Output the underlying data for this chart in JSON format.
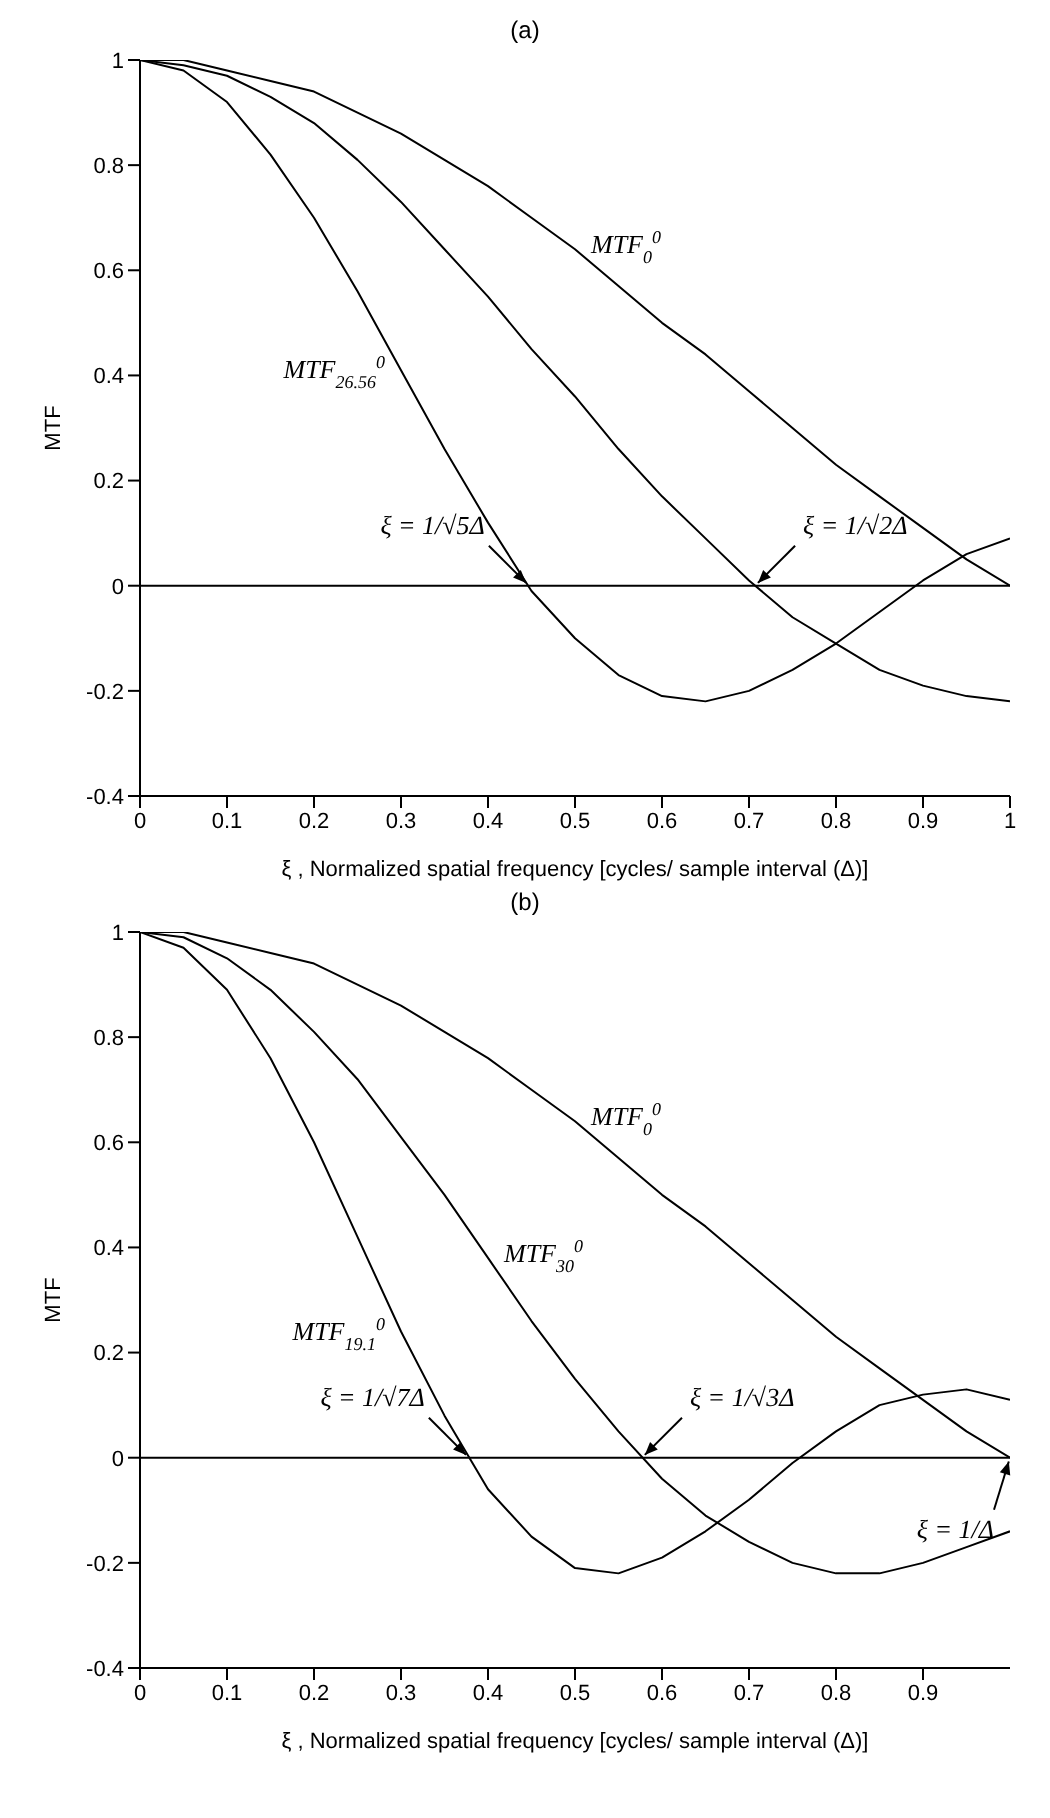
{
  "chart_data": [
    {
      "type": "line",
      "title": "(a)",
      "xlabel": "ξ , Normalized spatial frequency [cycles/ sample interval (Δ)]",
      "ylabel": "MTF",
      "x": [
        0,
        0.05,
        0.1,
        0.15,
        0.2,
        0.25,
        0.3,
        0.35,
        0.4,
        0.45,
        0.5,
        0.55,
        0.6,
        0.65,
        0.7,
        0.75,
        0.8,
        0.85,
        0.9,
        0.95,
        1
      ],
      "series": [
        {
          "color": "#000000",
          "values": [
            1,
            1.0,
            0.98,
            0.96,
            0.94,
            0.9,
            0.86,
            0.81,
            0.76,
            0.7,
            0.64,
            0.57,
            0.5,
            0.44,
            0.37,
            0.3,
            0.23,
            0.17,
            0.11,
            0.05,
            0
          ]
        },
        {
          "color": "#000000",
          "values": [
            1,
            0.99,
            0.97,
            0.93,
            0.88,
            0.81,
            0.73,
            0.64,
            0.55,
            0.45,
            0.36,
            0.26,
            0.17,
            0.09,
            0.01,
            -0.06,
            -0.11,
            -0.16,
            -0.19,
            -0.21,
            -0.22
          ]
        },
        {
          "color": "#000000",
          "values": [
            1,
            0.98,
            0.92,
            0.82,
            0.7,
            0.56,
            0.41,
            0.26,
            0.12,
            -0.01,
            -0.1,
            -0.17,
            -0.21,
            -0.22,
            -0.2,
            -0.16,
            -0.11,
            -0.05,
            0.01,
            0.06,
            0.09
          ]
        }
      ],
      "xlim": [
        0,
        1
      ],
      "xticks": [
        0,
        0.1,
        0.2,
        0.3,
        0.4,
        0.5,
        0.6,
        0.7,
        0.8,
        0.9,
        1
      ],
      "ylim": [
        -0.4,
        1
      ],
      "yticks": [
        -0.4,
        -0.2,
        0,
        0.2,
        0.4,
        0.6,
        0.8,
        1
      ],
      "ref_lines": [
        {
          "axis": "y",
          "value": 0,
          "color": "#000000"
        }
      ],
      "annotations": [
        {
          "text": "MTF$_{0}$$^{0}$",
          "x": 0.5,
          "y": 0.64
        },
        {
          "text": "MTF$_{26.56}$$^{0}$",
          "x": 0.3,
          "y": 0.41
        },
        {
          "text": "ξ = 1/√5Δ",
          "x": 0.447,
          "y": 0
        },
        {
          "text": "ξ = 1/√2Δ",
          "x": 0.707,
          "y": 0
        }
      ]
    },
    {
      "type": "line",
      "title": "(b)",
      "xlabel": "ξ , Normalized spatial frequency [cycles/ sample interval (Δ)]",
      "ylabel": "MTF",
      "x": [
        0,
        0.05,
        0.1,
        0.15,
        0.2,
        0.25,
        0.3,
        0.35,
        0.4,
        0.45,
        0.5,
        0.55,
        0.6,
        0.65,
        0.7,
        0.75,
        0.8,
        0.85,
        0.9,
        0.95,
        1
      ],
      "series": [
        {
          "color": "#000000",
          "values": [
            1,
            1.0,
            0.98,
            0.96,
            0.94,
            0.9,
            0.86,
            0.81,
            0.76,
            0.7,
            0.64,
            0.57,
            0.5,
            0.44,
            0.37,
            0.3,
            0.23,
            0.17,
            0.11,
            0.05,
            0
          ]
        },
        {
          "color": "#000000",
          "values": [
            1,
            0.99,
            0.95,
            0.89,
            0.81,
            0.72,
            0.61,
            0.5,
            0.38,
            0.26,
            0.15,
            0.05,
            -0.04,
            -0.11,
            -0.16,
            -0.2,
            -0.22,
            -0.22,
            -0.2,
            -0.17,
            -0.14
          ]
        },
        {
          "color": "#000000",
          "values": [
            1,
            0.97,
            0.89,
            0.76,
            0.6,
            0.42,
            0.24,
            0.08,
            -0.06,
            -0.15,
            -0.21,
            -0.22,
            -0.19,
            -0.14,
            -0.08,
            -0.01,
            0.05,
            0.1,
            0.12,
            0.13,
            0.11
          ]
        }
      ],
      "xlim": [
        0,
        1
      ],
      "xticks": [
        0,
        0.1,
        0.2,
        0.3,
        0.4,
        0.5,
        0.6,
        0.7,
        0.8,
        0.9
      ],
      "ylim": [
        -0.4,
        1
      ],
      "yticks": [
        -0.4,
        -0.2,
        0,
        0.2,
        0.4,
        0.6,
        0.8,
        1
      ],
      "ref_lines": [
        {
          "axis": "y",
          "value": 0,
          "color": "#000000"
        }
      ],
      "annotations": [
        {
          "text": "MTF$_{0}$$^{0}$",
          "x": 0.5,
          "y": 0.64
        },
        {
          "text": "MTF$_{30}$$^{0}$",
          "x": 0.4,
          "y": 0.38
        },
        {
          "text": "MTF$_{19.1}$$^{0}$",
          "x": 0.3,
          "y": 0.24
        },
        {
          "text": "ξ = 1/√7Δ",
          "x": 0.378,
          "y": 0
        },
        {
          "text": "ξ = 1/√3Δ",
          "x": 0.577,
          "y": 0
        },
        {
          "text": "ξ = 1/Δ",
          "x": 1,
          "y": 0
        }
      ]
    }
  ]
}
